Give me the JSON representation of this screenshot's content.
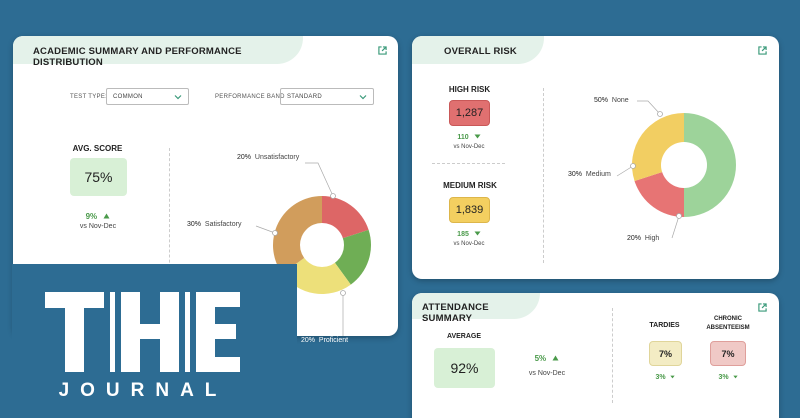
{
  "academic": {
    "title": "ACADEMIC SUMMARY AND PERFORMANCE DISTRIBUTION",
    "test_type_label": "TEST TYPE:",
    "test_type_value": "COMMON",
    "band_label": "PERFORMANCE BAND",
    "band_value": "STANDARD",
    "avg_title": "AVG. SCORE",
    "avg_value": "75%",
    "avg_delta": "9%",
    "avg_vs": "vs Nov-Dec",
    "callouts": {
      "unsatisfactory_pct": "20%",
      "unsatisfactory_label": "Unsatisfactory",
      "satisfactory_pct": "30%",
      "satisfactory_label": "Satisfactory",
      "proficient_pct": "20%",
      "proficient_label": "Proficient"
    },
    "donut_colors": [
      "#dd6666",
      "#6fae55",
      "#ede07a",
      "#d19d5c"
    ]
  },
  "risk": {
    "title": "OVERALL  RISK",
    "high_title": "HIGH RISK",
    "high_value": "1,287",
    "high_delta": "110",
    "high_vs": "vs Nov-Dec",
    "medium_title": "MEDIUM RISK",
    "medium_value": "1,839",
    "medium_delta": "185",
    "medium_vs": "vs Nov-Dec",
    "callouts": {
      "none_pct": "50%",
      "none_label": "None",
      "medium_pct": "30%",
      "medium_label": "Medium",
      "high_pct": "20%",
      "high_label": "High"
    },
    "donut_colors": [
      "#9dd39a",
      "#e77474",
      "#f2ce62"
    ]
  },
  "attendance": {
    "title": "ATTENDANCE SUMMARY",
    "avg_title": "AVERAGE",
    "avg_value": "92%",
    "avg_delta": "5%",
    "avg_vs": "vs Nov-Dec",
    "tardies_title": "TARDIES",
    "tardies_value": "7%",
    "tardies_delta": "3%",
    "chronic_title_1": "CHRONIC",
    "chronic_title_2": "ABSENTEEISM",
    "chronic_value": "7%",
    "chronic_delta": "3%"
  },
  "logo": {
    "word1": "THE",
    "word2": "JOURNAL"
  }
}
